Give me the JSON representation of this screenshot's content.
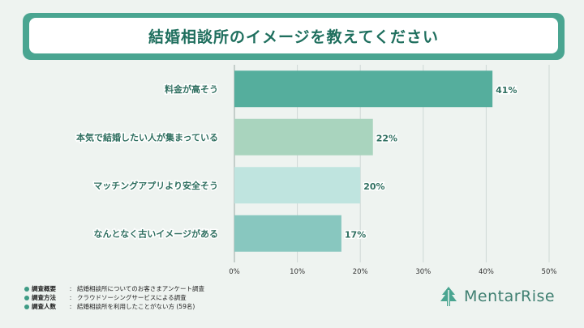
{
  "chart_data": {
    "type": "bar",
    "orientation": "horizontal",
    "title": "結婚相談所のイメージを教えてください",
    "categories": [
      "料金が高そう",
      "本気で結婚したい人が集まっている",
      "マッチングアプリより安全そう",
      "なんとなく古いイメージがある"
    ],
    "values": [
      41,
      22,
      20,
      17
    ],
    "value_labels": [
      "41%",
      "22%",
      "20%",
      "17%"
    ],
    "xlim": [
      0,
      50
    ],
    "xticks": [
      "0%",
      "10%",
      "20%",
      "30%",
      "40%",
      "50%"
    ],
    "grid": true,
    "colors": [
      "#55ae9d",
      "#a9d4be",
      "#bfe4df",
      "#88c7bf"
    ]
  },
  "notes": [
    {
      "label": "調査概要",
      "colon": ":",
      "text": "結婚相談所についてのお客さまアンケート調査"
    },
    {
      "label": "調査方法",
      "colon": ":",
      "text": "クラウドソーシングサービスによる調査"
    },
    {
      "label": "調査人数",
      "colon": ":",
      "text": "結婚相談所を利用したことがない方 (59名)"
    }
  ],
  "logo": {
    "text": "MentarRise",
    "icon": "tree-icon",
    "color": "#3f7f71"
  }
}
